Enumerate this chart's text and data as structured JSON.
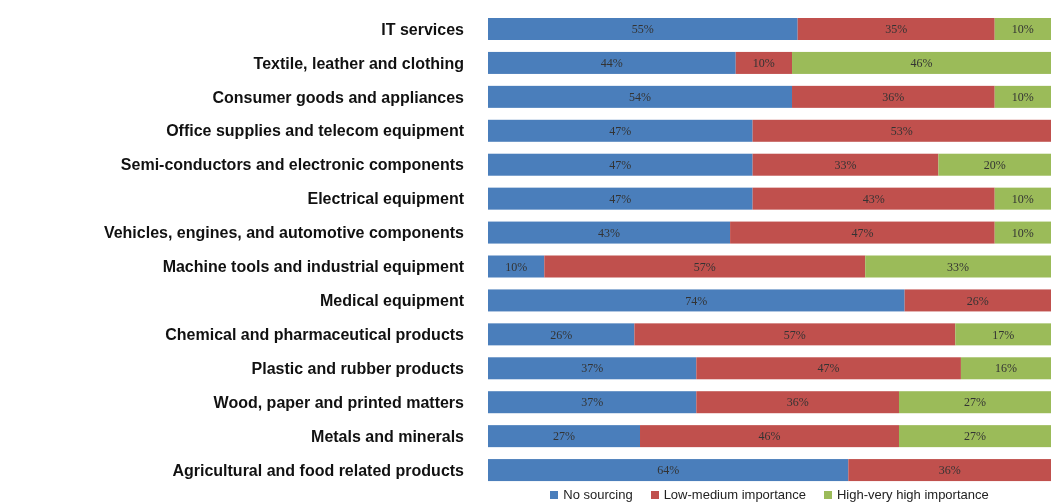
{
  "chart_data": {
    "type": "bar",
    "orientation": "horizontal",
    "stacked": true,
    "legend": "bottom",
    "grid": false,
    "tick_labels": "y",
    "xlim": [
      0,
      100
    ],
    "categories": [
      "IT services",
      "Textile, leather and clothing",
      "Consumer goods and appliances",
      "Office supplies and telecom equipment",
      "Semi-conductors and electronic components",
      "Electrical equipment",
      "Vehicles, engines, and automotive components",
      "Machine tools and industrial equipment",
      "Medical equipment",
      "Chemical and pharmaceutical products",
      "Plastic and rubber products",
      "Wood, paper and printed matters",
      "Metals and minerals",
      "Agricultural and food related products"
    ],
    "series": [
      {
        "name": "No sourcing",
        "color": "#4a7ebb",
        "values": [
          55,
          44,
          54,
          47,
          47,
          47,
          43,
          10,
          74,
          26,
          37,
          37,
          27,
          64
        ],
        "value_labels": [
          "55%",
          "44%",
          "54%",
          "47%",
          "47%",
          "47%",
          "43%",
          "10%",
          "74%",
          "26%",
          "37%",
          "37%",
          "27%",
          "64%"
        ]
      },
      {
        "name": "Low-medium importance",
        "color": "#c0504d",
        "values": [
          35,
          10,
          36,
          53,
          33,
          43,
          47,
          57,
          26,
          57,
          47,
          36,
          46,
          36
        ],
        "value_labels": [
          "35%",
          "10%",
          "36%",
          "53%",
          "33%",
          "43%",
          "47%",
          "57%",
          "26%",
          "57%",
          "47%",
          "36%",
          "46%",
          "36%"
        ]
      },
      {
        "name": "High-very high importance",
        "color": "#9bbb59",
        "values": [
          10,
          46,
          10,
          null,
          20,
          10,
          10,
          33,
          null,
          17,
          16,
          27,
          27,
          null
        ],
        "value_labels": [
          "10%",
          "46%",
          "10%",
          null,
          "20%",
          "10%",
          "10%",
          "33%",
          null,
          "17%",
          "16%",
          "27%",
          "27%",
          null
        ]
      }
    ]
  }
}
